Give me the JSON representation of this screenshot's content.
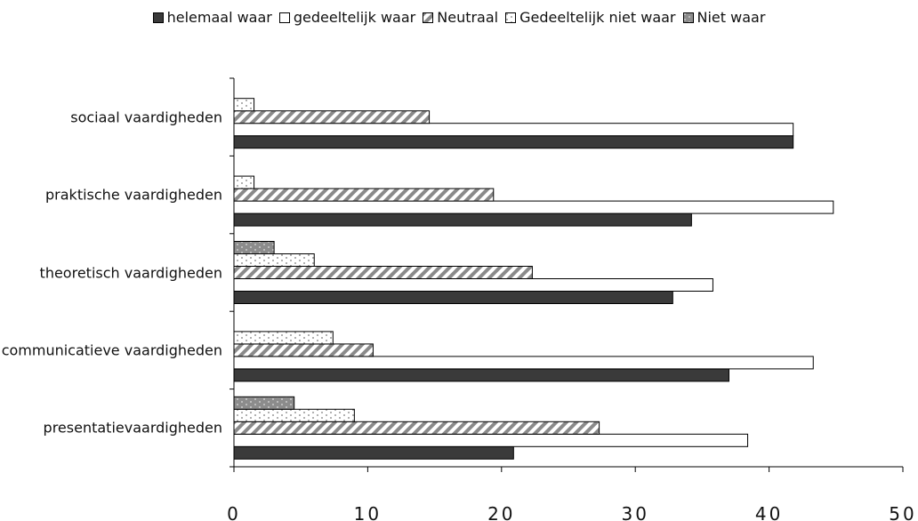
{
  "chart_data": {
    "type": "hbar",
    "categories": [
      "sociaal vaardigheden",
      "praktische vaardigheden",
      "theoretisch vaardigheden",
      "communicatieve vaardigheden",
      "presentatievaardigheden"
    ],
    "series": [
      {
        "name": "helemaal waar",
        "color": "#3a3a3a",
        "pattern": "solid",
        "values": [
          41.8,
          34.2,
          32.8,
          37.0,
          20.9
        ]
      },
      {
        "name": "gedeeltelijk waar",
        "color": "#ffffff",
        "pattern": "solid",
        "values": [
          41.8,
          44.8,
          35.8,
          43.3,
          38.4
        ]
      },
      {
        "name": "Neutraal",
        "color": "#9a9a9a",
        "pattern": "hatch",
        "values": [
          14.6,
          19.4,
          22.3,
          10.4,
          27.3
        ]
      },
      {
        "name": "Gedeeltelijk niet waar",
        "color": "#ffffff",
        "pattern": "dots",
        "values": [
          1.5,
          1.5,
          6.0,
          7.4,
          9.0
        ]
      },
      {
        "name": "Niet waar",
        "color": "#8c8c8c",
        "pattern": "dots",
        "values": [
          0,
          0,
          3.0,
          0,
          4.5
        ]
      }
    ],
    "xlim": [
      0,
      50
    ],
    "xticks": [
      0,
      10,
      20,
      30,
      40,
      50
    ],
    "legend": "top"
  }
}
